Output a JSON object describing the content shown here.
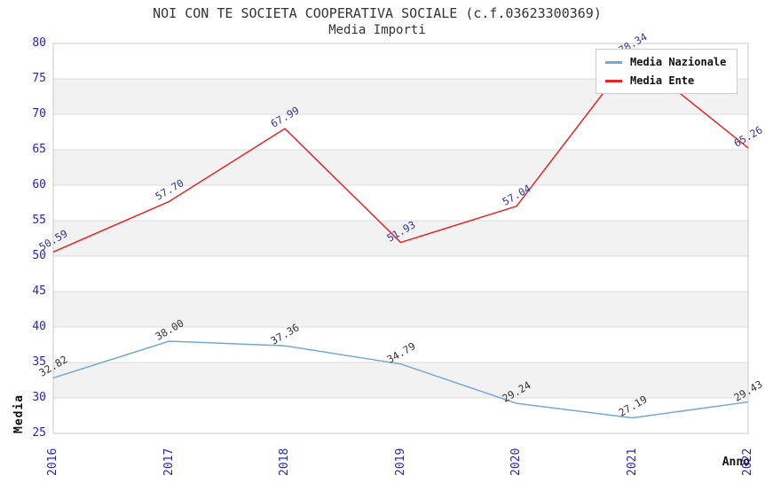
{
  "header": {
    "title": "NOI CON TE SOCIETA COOPERATIVA SOCIALE (c.f.03623300369)",
    "subtitle": "Media Importi"
  },
  "chart_data": {
    "type": "line",
    "title": "NOI CON TE SOCIETA COOPERATIVA SOCIALE (c.f.03623300369)",
    "subtitle": "Media Importi",
    "xlabel": "Anno",
    "ylabel": "Media",
    "categories": [
      "2016",
      "2017",
      "2018",
      "2019",
      "2020",
      "2021",
      "2022"
    ],
    "series": [
      {
        "name": "Media Nazionale",
        "color": "#74a9d6",
        "label_color": "#333333",
        "values": [
          32.82,
          38.0,
          37.36,
          34.79,
          29.24,
          27.19,
          29.43
        ],
        "labels": [
          "32.82",
          "38.00",
          "37.36",
          "34.79",
          "29.24",
          "27.19",
          "29.43"
        ]
      },
      {
        "name": "Media Ente",
        "color": "#e62525",
        "label_color": "#333399",
        "values": [
          50.59,
          57.7,
          67.99,
          51.93,
          57.04,
          78.34,
          65.26
        ],
        "labels": [
          "50.59",
          "57.70",
          "67.99",
          "51.93",
          "57.04",
          "78.34",
          "65.26"
        ]
      }
    ],
    "ylim": [
      25,
      80
    ],
    "ytick_step": 5,
    "yticks": [
      25,
      30,
      35,
      40,
      45,
      50,
      55,
      60,
      65,
      70,
      75,
      80
    ],
    "grid": true,
    "legend_position": "top-right",
    "colors": {
      "tick_label": "#2424cc",
      "band_gray": "#f2f2f2",
      "grid_line": "#dcdcdc",
      "plot_border": "#c8c8c8",
      "title_text": "#333333"
    }
  }
}
